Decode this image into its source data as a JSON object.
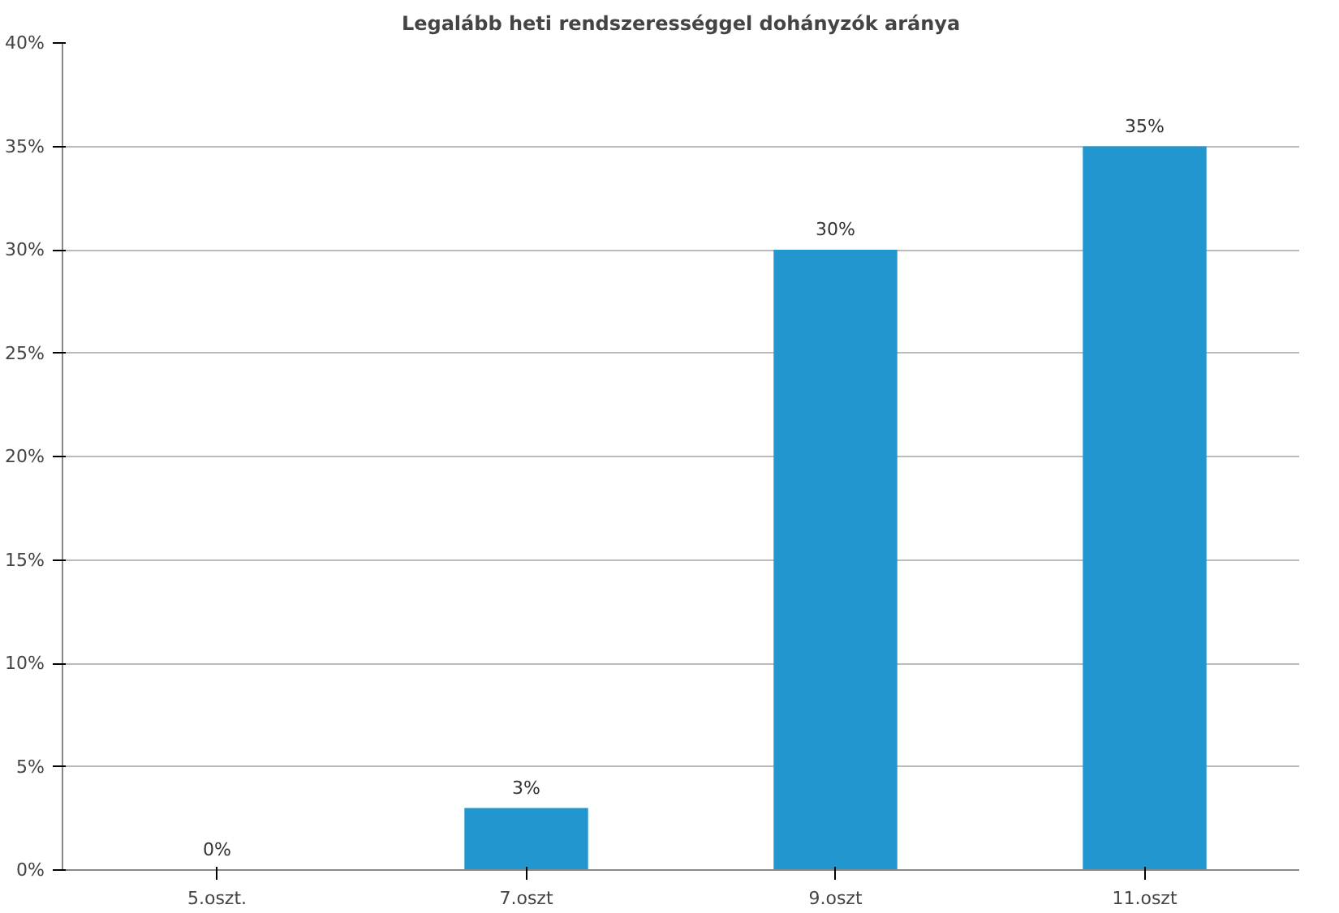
{
  "chart_data": {
    "type": "bar",
    "title": "Legalább heti rendszerességgel dohányzók aránya",
    "categories": [
      "5.oszt.",
      "7.oszt",
      "9.oszt",
      "11.oszt"
    ],
    "values": [
      0,
      3,
      30,
      35
    ],
    "value_labels": [
      "0%",
      "3%",
      "30%",
      "35%"
    ],
    "color": "#2196cf",
    "ylim": [
      0,
      40
    ],
    "yticks": [
      {
        "value": 0,
        "label": "0%"
      },
      {
        "value": 5,
        "label": "5%"
      },
      {
        "value": 10,
        "label": "10%"
      },
      {
        "value": 15,
        "label": "15%"
      },
      {
        "value": 20,
        "label": "20%"
      },
      {
        "value": 25,
        "label": "25%"
      },
      {
        "value": 30,
        "label": "30%"
      },
      {
        "value": 35,
        "label": "35%"
      },
      {
        "value": 40,
        "label": "40%"
      }
    ],
    "grid": "y"
  }
}
